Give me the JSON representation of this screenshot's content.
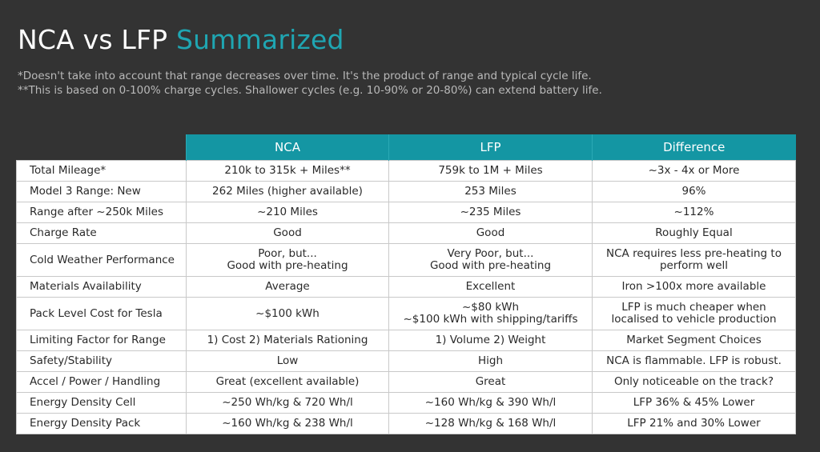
{
  "title": {
    "main": "NCA vs LFP ",
    "accent": "Summarized"
  },
  "notes": [
    "*Doesn't take into account that range decreases over time.  It's the product of range and typical cycle life.",
    "**This is based on 0-100% charge cycles.  Shallower cycles (e.g. 10-90% or 20-80%) can extend battery life."
  ],
  "table": {
    "headers": [
      "NCA",
      "LFP",
      "Difference"
    ],
    "rows": [
      {
        "label": "Total Mileage*",
        "cells": [
          [
            "210k to 315k + Miles**"
          ],
          [
            "759k to 1M + Miles"
          ],
          [
            "~3x - 4x or More"
          ]
        ]
      },
      {
        "label": "Model 3 Range: New",
        "cells": [
          [
            "262 Miles (higher available)"
          ],
          [
            "253 Miles"
          ],
          [
            "96%"
          ]
        ]
      },
      {
        "label": "Range after ~250k Miles",
        "cells": [
          [
            "~210 Miles"
          ],
          [
            "~235 Miles"
          ],
          [
            "~112%"
          ]
        ]
      },
      {
        "label": "Charge Rate",
        "cells": [
          [
            "Good"
          ],
          [
            "Good"
          ],
          [
            "Roughly Equal"
          ]
        ]
      },
      {
        "label": "Cold Weather Performance",
        "cells": [
          [
            "Poor, but...",
            "Good with pre-heating"
          ],
          [
            "Very Poor, but...",
            "Good with pre-heating"
          ],
          [
            "NCA requires less pre-heating to",
            "perform well"
          ]
        ]
      },
      {
        "label": "Materials Availability",
        "cells": [
          [
            "Average"
          ],
          [
            "Excellent"
          ],
          [
            "Iron >100x more available"
          ]
        ]
      },
      {
        "label": "Pack Level Cost for Tesla",
        "cells": [
          [
            "~$100 kWh"
          ],
          [
            "~$80 kWh",
            "~$100 kWh with shipping/tariffs"
          ],
          [
            "LFP is much cheaper when",
            "localised to vehicle production"
          ]
        ]
      },
      {
        "label": "Limiting Factor for Range",
        "cells": [
          [
            "1) Cost 2) Materials Rationing"
          ],
          [
            "1) Volume 2) Weight"
          ],
          [
            "Market Segment Choices"
          ]
        ]
      },
      {
        "label": "Safety/Stability",
        "cells": [
          [
            "Low"
          ],
          [
            "High"
          ],
          [
            "NCA is flammable. LFP is robust."
          ]
        ]
      },
      {
        "label": "Accel / Power / Handling",
        "cells": [
          [
            "Great (excellent available)"
          ],
          [
            "Great"
          ],
          [
            "Only noticeable on the track?"
          ]
        ]
      },
      {
        "label": "Energy Density Cell",
        "cells": [
          [
            "~250 Wh/kg & 720 Wh/l"
          ],
          [
            "~160 Wh/kg & 390 Wh/l"
          ],
          [
            "LFP 36% & 45% Lower"
          ]
        ]
      },
      {
        "label": "Energy Density Pack",
        "cells": [
          [
            "~160 Wh/kg & 238 Wh/l"
          ],
          [
            "~128 Wh/kg & 168 Wh/l"
          ],
          [
            "LFP 21% and 30% Lower"
          ]
        ]
      }
    ]
  },
  "colors": {
    "background": "#333333",
    "accent": "#1fa6b2",
    "header": "#1496a3"
  }
}
